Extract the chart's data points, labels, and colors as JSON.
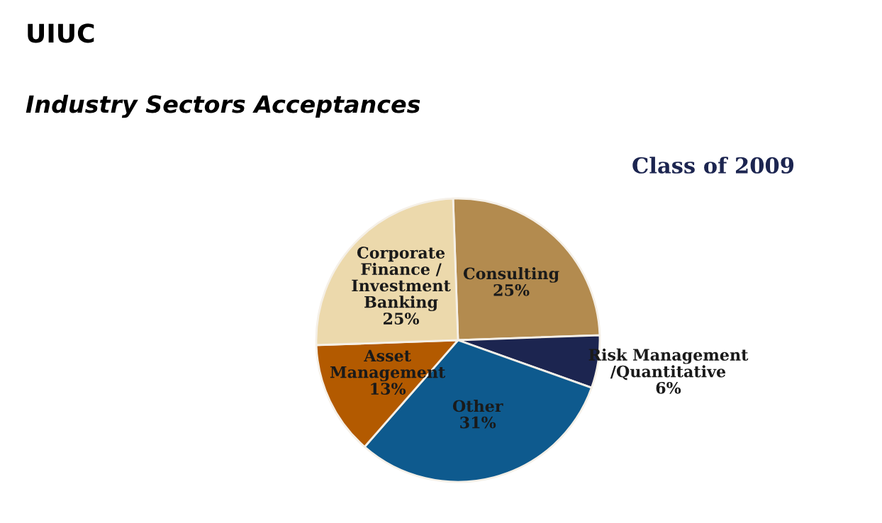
{
  "chart_data": {
    "type": "pie",
    "title": "UIUC",
    "subtitle": "Industry Sectors Acceptances",
    "categories": [
      "Consulting",
      "Risk Management\n/Quantitative",
      "Other",
      "Asset\nManagement",
      "Corporate\nFinance /\nInvestment\nBanking"
    ],
    "values": [
      25,
      6,
      31,
      13,
      25
    ],
    "value_labels": [
      "25%",
      "6%",
      "31%",
      "13%",
      "25%"
    ],
    "colors": [
      "#b38b4f",
      "#1c2550",
      "#0e5a8e",
      "#b35a00",
      "#ecd9ac"
    ],
    "annotations": [
      "Class of 2009"
    ],
    "legend": false
  }
}
